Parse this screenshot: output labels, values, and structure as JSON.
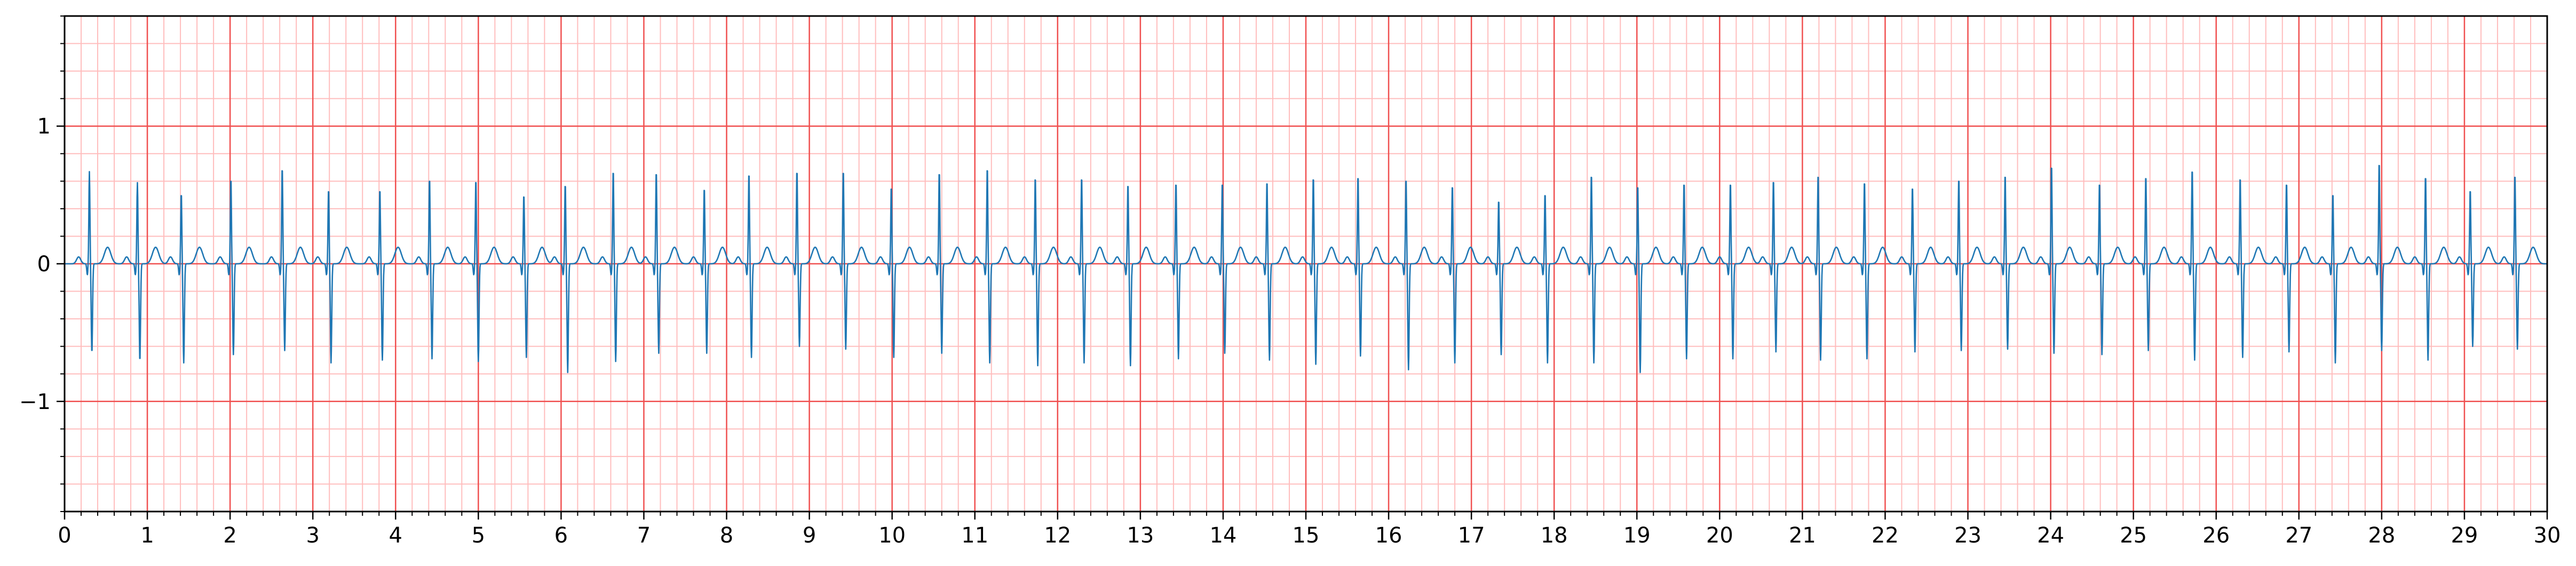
{
  "chart_data": {
    "type": "line",
    "title": "",
    "xlabel": "",
    "ylabel": "",
    "xlim": [
      0,
      30
    ],
    "ylim": [
      -1.8,
      1.8
    ],
    "x_ticks": [
      0,
      1,
      2,
      3,
      4,
      5,
      6,
      7,
      8,
      9,
      10,
      11,
      12,
      13,
      14,
      15,
      16,
      17,
      18,
      19,
      20,
      21,
      22,
      23,
      24,
      25,
      26,
      27,
      28,
      29,
      30
    ],
    "x_tick_labels": [
      "0",
      "1",
      "2",
      "3",
      "4",
      "5",
      "6",
      "7",
      "8",
      "9",
      "10",
      "11",
      "12",
      "13",
      "14",
      "15",
      "16",
      "17",
      "18",
      "19",
      "20",
      "21",
      "22",
      "23",
      "24",
      "25",
      "26",
      "27",
      "28",
      "29",
      "30"
    ],
    "y_ticks": [
      -1,
      0,
      1
    ],
    "y_tick_labels": [
      "−1",
      "0",
      "1"
    ],
    "grid": {
      "major_step_x": 1,
      "major_step_y": 1,
      "minor_step_x": 0.2,
      "minor_step_y": 0.2,
      "major_color": "#f05050",
      "minor_color": "#ffbdbd"
    },
    "series": [
      {
        "name": "",
        "color": "#1f77b4",
        "beat_times": [
          0.3,
          0.88,
          1.41,
          2.01,
          2.63,
          3.19,
          3.81,
          4.41,
          4.97,
          5.55,
          6.05,
          6.63,
          7.15,
          7.73,
          8.27,
          8.85,
          9.41,
          9.99,
          10.57,
          11.15,
          11.73,
          12.29,
          12.85,
          13.43,
          13.99,
          14.53,
          15.09,
          15.63,
          16.21,
          16.77,
          17.33,
          17.89,
          18.45,
          19.01,
          19.57,
          20.13,
          20.65,
          21.19,
          21.75,
          22.33,
          22.89,
          23.45,
          24.01,
          24.59,
          25.15,
          25.71,
          26.29,
          26.85,
          27.41,
          27.97,
          28.53,
          29.07,
          29.61
        ],
        "r_amplitudes": [
          0.67,
          0.59,
          0.52,
          0.63,
          0.71,
          0.55,
          0.55,
          0.63,
          0.62,
          0.51,
          0.59,
          0.69,
          0.68,
          0.56,
          0.67,
          0.69,
          0.69,
          0.57,
          0.68,
          0.71,
          0.64,
          0.64,
          0.59,
          0.6,
          0.6,
          0.61,
          0.64,
          0.65,
          0.63,
          0.58,
          0.47,
          0.52,
          0.66,
          0.58,
          0.6,
          0.6,
          0.62,
          0.66,
          0.61,
          0.57,
          0.63,
          0.66,
          0.73,
          0.6,
          0.65,
          0.7,
          0.64,
          0.6,
          0.52,
          0.75,
          0.65,
          0.55,
          0.66
        ],
        "s_amplitudes": [
          -0.65,
          -0.71,
          -0.72,
          -0.66,
          -0.63,
          -0.72,
          -0.7,
          -0.69,
          -0.71,
          -0.68,
          -0.79,
          -0.71,
          -0.65,
          -0.65,
          -0.68,
          -0.6,
          -0.62,
          -0.68,
          -0.65,
          -0.72,
          -0.74,
          -0.72,
          -0.74,
          -0.69,
          -0.65,
          -0.7,
          -0.73,
          -0.67,
          -0.77,
          -0.72,
          -0.66,
          -0.72,
          -0.72,
          -0.79,
          -0.69,
          -0.69,
          -0.64,
          -0.7,
          -0.69,
          -0.64,
          -0.63,
          -0.62,
          -0.65,
          -0.66,
          -0.63,
          -0.7,
          -0.68,
          -0.64,
          -0.72,
          -0.63,
          -0.7,
          -0.6,
          -0.62
        ],
        "t_wave_amplitude": 0.12,
        "baseline": 0.0
      }
    ]
  }
}
